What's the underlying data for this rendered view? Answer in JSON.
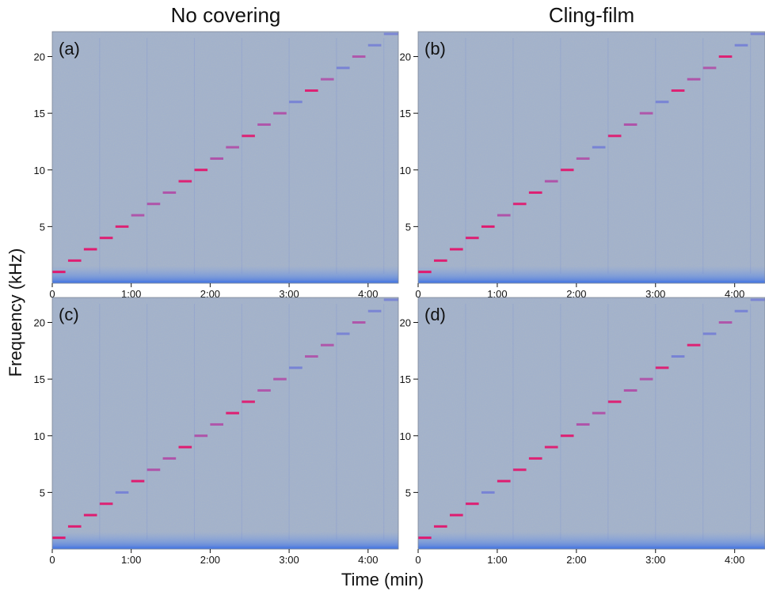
{
  "column_titles": [
    "No covering",
    "Cling-film"
  ],
  "axis_labels": {
    "x": "Time (min)",
    "y": "Frequency (kHz)"
  },
  "colors": {
    "background": "#a9b6c6",
    "noise_band": "#4f7de0",
    "tone_high": "#e0186e",
    "tone_mid": "#b04ba6",
    "tone_low": "#6f79d6"
  },
  "chart_data": [
    {
      "type": "heatmap",
      "panel_label": "(a)",
      "x_ticks": [
        "0",
        "1:00",
        "2:00",
        "3:00",
        "4:00"
      ],
      "y_ticks": [
        "5",
        "10",
        "15",
        "20"
      ],
      "xlim": [
        0,
        263
      ],
      "ylim": [
        0,
        22.2
      ],
      "step_duration_s": 12,
      "tones": [
        {
          "f": 1,
          "t0": 0,
          "t1": 10,
          "i": 1.0
        },
        {
          "f": 2,
          "t0": 12,
          "t1": 22,
          "i": 0.9
        },
        {
          "f": 3,
          "t0": 24,
          "t1": 34,
          "i": 0.95
        },
        {
          "f": 4,
          "t0": 36,
          "t1": 46,
          "i": 0.9
        },
        {
          "f": 5,
          "t0": 48,
          "t1": 58,
          "i": 0.85
        },
        {
          "f": 6,
          "t0": 60,
          "t1": 70,
          "i": 0.75
        },
        {
          "f": 7,
          "t0": 72,
          "t1": 82,
          "i": 0.8
        },
        {
          "f": 8,
          "t0": 84,
          "t1": 94,
          "i": 0.8
        },
        {
          "f": 9,
          "t0": 96,
          "t1": 106,
          "i": 0.85
        },
        {
          "f": 10,
          "t0": 108,
          "t1": 118,
          "i": 0.95
        },
        {
          "f": 11,
          "t0": 120,
          "t1": 130,
          "i": 0.8
        },
        {
          "f": 12,
          "t0": 132,
          "t1": 142,
          "i": 0.75
        },
        {
          "f": 13,
          "t0": 144,
          "t1": 154,
          "i": 0.85
        },
        {
          "f": 14,
          "t0": 156,
          "t1": 166,
          "i": 0.75
        },
        {
          "f": 15,
          "t0": 168,
          "t1": 178,
          "i": 0.8
        },
        {
          "f": 16,
          "t0": 180,
          "t1": 190,
          "i": 0.6
        },
        {
          "f": 17,
          "t0": 192,
          "t1": 202,
          "i": 0.85
        },
        {
          "f": 18,
          "t0": 204,
          "t1": 214,
          "i": 0.65
        },
        {
          "f": 19,
          "t0": 216,
          "t1": 226,
          "i": 0.55
        },
        {
          "f": 20,
          "t0": 228,
          "t1": 238,
          "i": 0.7
        },
        {
          "f": 21,
          "t0": 240,
          "t1": 250,
          "i": 0.5
        },
        {
          "f": 22,
          "t0": 252,
          "t1": 263,
          "i": 0.4
        }
      ]
    },
    {
      "type": "heatmap",
      "panel_label": "(b)",
      "x_ticks": [
        "0",
        "1:00",
        "2:00",
        "3:00",
        "4:00"
      ],
      "y_ticks": [
        "5",
        "10",
        "15",
        "20"
      ],
      "xlim": [
        0,
        263
      ],
      "ylim": [
        0,
        22.2
      ],
      "step_duration_s": 12,
      "tones": [
        {
          "f": 1,
          "t0": 0,
          "t1": 10,
          "i": 1.0
        },
        {
          "f": 2,
          "t0": 12,
          "t1": 22,
          "i": 0.9
        },
        {
          "f": 3,
          "t0": 24,
          "t1": 34,
          "i": 0.95
        },
        {
          "f": 4,
          "t0": 36,
          "t1": 46,
          "i": 0.9
        },
        {
          "f": 5,
          "t0": 48,
          "t1": 58,
          "i": 0.95
        },
        {
          "f": 6,
          "t0": 60,
          "t1": 70,
          "i": 0.8
        },
        {
          "f": 7,
          "t0": 72,
          "t1": 82,
          "i": 0.85
        },
        {
          "f": 8,
          "t0": 84,
          "t1": 94,
          "i": 0.9
        },
        {
          "f": 9,
          "t0": 96,
          "t1": 106,
          "i": 0.8
        },
        {
          "f": 10,
          "t0": 108,
          "t1": 118,
          "i": 0.9
        },
        {
          "f": 11,
          "t0": 120,
          "t1": 130,
          "i": 0.7
        },
        {
          "f": 12,
          "t0": 132,
          "t1": 142,
          "i": 0.6
        },
        {
          "f": 13,
          "t0": 144,
          "t1": 154,
          "i": 0.85
        },
        {
          "f": 14,
          "t0": 156,
          "t1": 166,
          "i": 0.8
        },
        {
          "f": 15,
          "t0": 168,
          "t1": 178,
          "i": 0.75
        },
        {
          "f": 16,
          "t0": 180,
          "t1": 190,
          "i": 0.6
        },
        {
          "f": 17,
          "t0": 192,
          "t1": 202,
          "i": 0.85
        },
        {
          "f": 18,
          "t0": 204,
          "t1": 214,
          "i": 0.8
        },
        {
          "f": 19,
          "t0": 216,
          "t1": 226,
          "i": 0.7
        },
        {
          "f": 20,
          "t0": 228,
          "t1": 238,
          "i": 0.85
        },
        {
          "f": 21,
          "t0": 240,
          "t1": 250,
          "i": 0.6
        },
        {
          "f": 22,
          "t0": 252,
          "t1": 263,
          "i": 0.4
        }
      ]
    },
    {
      "type": "heatmap",
      "panel_label": "(c)",
      "x_ticks": [
        "0",
        "1:00",
        "2:00",
        "3:00",
        "4:00"
      ],
      "y_ticks": [
        "5",
        "10",
        "15",
        "20"
      ],
      "xlim": [
        0,
        263
      ],
      "ylim": [
        0,
        22.2
      ],
      "step_duration_s": 12,
      "tones": [
        {
          "f": 1,
          "t0": 0,
          "t1": 10,
          "i": 1.0
        },
        {
          "f": 2,
          "t0": 12,
          "t1": 22,
          "i": 0.9
        },
        {
          "f": 3,
          "t0": 24,
          "t1": 34,
          "i": 0.95
        },
        {
          "f": 4,
          "t0": 36,
          "t1": 46,
          "i": 0.85
        },
        {
          "f": 5,
          "t0": 48,
          "t1": 58,
          "i": 0.6
        },
        {
          "f": 6,
          "t0": 60,
          "t1": 70,
          "i": 0.95
        },
        {
          "f": 7,
          "t0": 72,
          "t1": 82,
          "i": 0.8
        },
        {
          "f": 8,
          "t0": 84,
          "t1": 94,
          "i": 0.8
        },
        {
          "f": 9,
          "t0": 96,
          "t1": 106,
          "i": 0.95
        },
        {
          "f": 10,
          "t0": 108,
          "t1": 118,
          "i": 0.8
        },
        {
          "f": 11,
          "t0": 120,
          "t1": 130,
          "i": 0.75
        },
        {
          "f": 12,
          "t0": 132,
          "t1": 142,
          "i": 0.9
        },
        {
          "f": 13,
          "t0": 144,
          "t1": 154,
          "i": 0.85
        },
        {
          "f": 14,
          "t0": 156,
          "t1": 166,
          "i": 0.7
        },
        {
          "f": 15,
          "t0": 168,
          "t1": 178,
          "i": 0.75
        },
        {
          "f": 16,
          "t0": 180,
          "t1": 190,
          "i": 0.6
        },
        {
          "f": 17,
          "t0": 192,
          "t1": 202,
          "i": 0.65
        },
        {
          "f": 18,
          "t0": 204,
          "t1": 214,
          "i": 0.75
        },
        {
          "f": 19,
          "t0": 216,
          "t1": 226,
          "i": 0.5
        },
        {
          "f": 20,
          "t0": 228,
          "t1": 238,
          "i": 0.75
        },
        {
          "f": 21,
          "t0": 240,
          "t1": 250,
          "i": 0.5
        },
        {
          "f": 22,
          "t0": 252,
          "t1": 263,
          "i": 0.4
        }
      ]
    },
    {
      "type": "heatmap",
      "panel_label": "(d)",
      "x_ticks": [
        "0",
        "1:00",
        "2:00",
        "3:00",
        "4:00"
      ],
      "y_ticks": [
        "5",
        "10",
        "15",
        "20"
      ],
      "xlim": [
        0,
        263
      ],
      "ylim": [
        0,
        22.2
      ],
      "step_duration_s": 12,
      "tones": [
        {
          "f": 1,
          "t0": 0,
          "t1": 10,
          "i": 1.0
        },
        {
          "f": 2,
          "t0": 12,
          "t1": 22,
          "i": 0.9
        },
        {
          "f": 3,
          "t0": 24,
          "t1": 34,
          "i": 0.95
        },
        {
          "f": 4,
          "t0": 36,
          "t1": 46,
          "i": 0.9
        },
        {
          "f": 5,
          "t0": 48,
          "t1": 58,
          "i": 0.6
        },
        {
          "f": 6,
          "t0": 60,
          "t1": 70,
          "i": 0.95
        },
        {
          "f": 7,
          "t0": 72,
          "t1": 82,
          "i": 0.85
        },
        {
          "f": 8,
          "t0": 84,
          "t1": 94,
          "i": 0.85
        },
        {
          "f": 9,
          "t0": 96,
          "t1": 106,
          "i": 0.85
        },
        {
          "f": 10,
          "t0": 108,
          "t1": 118,
          "i": 0.9
        },
        {
          "f": 11,
          "t0": 120,
          "t1": 130,
          "i": 0.8
        },
        {
          "f": 12,
          "t0": 132,
          "t1": 142,
          "i": 0.8
        },
        {
          "f": 13,
          "t0": 144,
          "t1": 154,
          "i": 0.85
        },
        {
          "f": 14,
          "t0": 156,
          "t1": 166,
          "i": 0.8
        },
        {
          "f": 15,
          "t0": 168,
          "t1": 178,
          "i": 0.75
        },
        {
          "f": 16,
          "t0": 180,
          "t1": 190,
          "i": 0.85
        },
        {
          "f": 17,
          "t0": 192,
          "t1": 202,
          "i": 0.6
        },
        {
          "f": 18,
          "t0": 204,
          "t1": 214,
          "i": 0.85
        },
        {
          "f": 19,
          "t0": 216,
          "t1": 226,
          "i": 0.55
        },
        {
          "f": 20,
          "t0": 228,
          "t1": 238,
          "i": 0.75
        },
        {
          "f": 21,
          "t0": 240,
          "t1": 250,
          "i": 0.6
        },
        {
          "f": 22,
          "t0": 252,
          "t1": 263,
          "i": 0.45
        }
      ]
    }
  ]
}
